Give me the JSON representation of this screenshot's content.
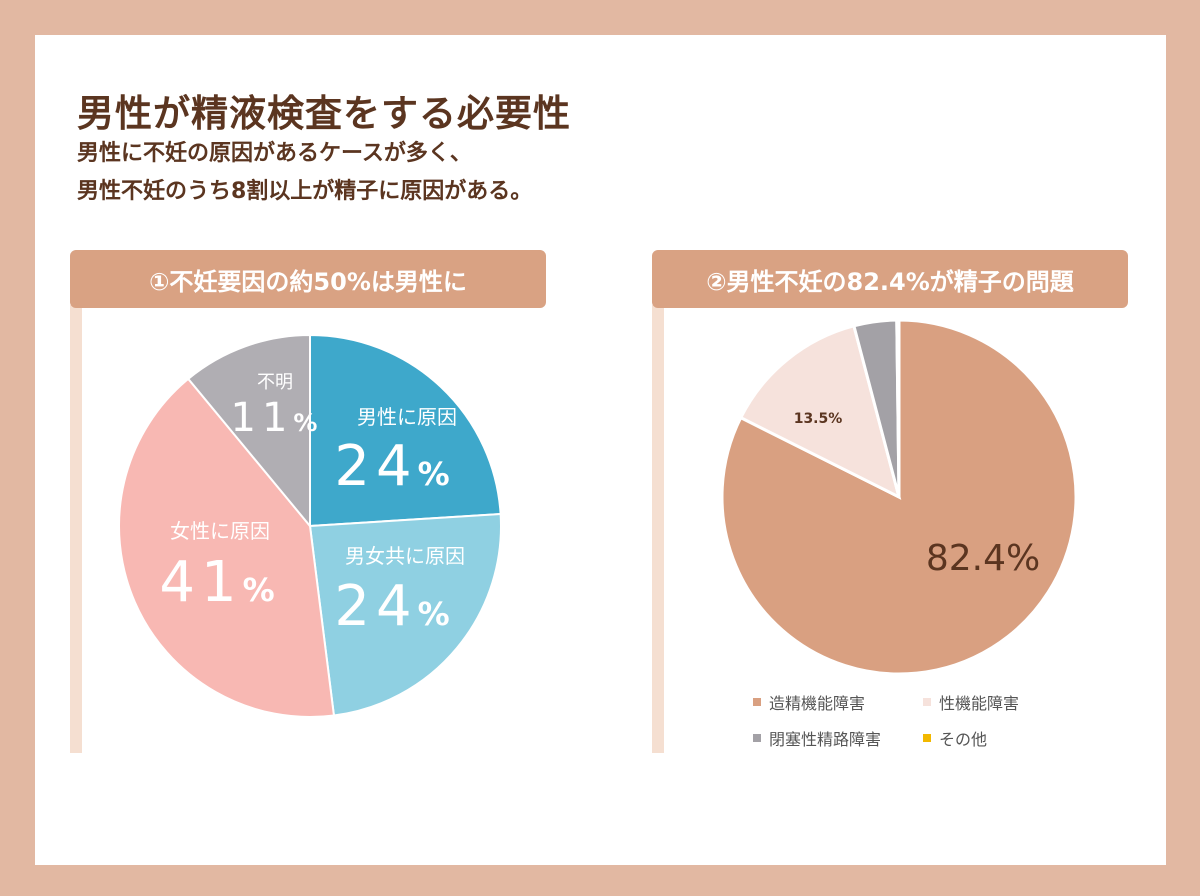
{
  "title": "男性が精液検査をする必要性",
  "subtitle_lines": [
    "男性に不妊の原因があるケースが多く、",
    "男性不妊のうち8割以上が精子に原因がある。"
  ],
  "panel1": {
    "heading": "①不妊要因の約50%は男性に"
  },
  "panel2": {
    "heading": "②男性不妊の82.4%が精子の問題"
  },
  "colors": {
    "male": "#3ea8cb",
    "both": "#8fd0e2",
    "female": "#f8b8b3",
    "unknown": "#b0aeb3",
    "sperm": "#d9a081",
    "sexual": "#f6e2dc",
    "obstruct": "#a3a1a6",
    "other": "#f2b800",
    "text_dark": "#5b3520"
  },
  "chart_data": [
    {
      "type": "pie",
      "title": "①不妊要因の約50%は男性に",
      "start": "top, clockwise",
      "slices": [
        {
          "label": "男性に原因",
          "value": 24,
          "display": "24",
          "unit": "%",
          "color_key": "male"
        },
        {
          "label": "男女共に原因",
          "value": 24,
          "display": "24",
          "unit": "%",
          "color_key": "both"
        },
        {
          "label": "女性に原因",
          "value": 41,
          "display": "41",
          "unit": "%",
          "color_key": "female"
        },
        {
          "label": "不明",
          "value": 11,
          "display": "11",
          "unit": "%",
          "color_key": "unknown"
        }
      ]
    },
    {
      "type": "pie",
      "title": "②男性不妊の82.4%が精子の問題",
      "start": "top, clockwise",
      "slices": [
        {
          "label": "造精機能障害",
          "value": 82.4,
          "display": "82.4%",
          "color_key": "sperm"
        },
        {
          "label": "性機能障害",
          "value": 13.5,
          "display": "13.5%",
          "color_key": "sexual"
        },
        {
          "label": "閉塞性精路障害",
          "value": 3.9,
          "display": "",
          "color_key": "obstruct"
        },
        {
          "label": "その他",
          "value": 0.2,
          "display": "",
          "color_key": "other"
        }
      ],
      "legend_position": "bottom"
    }
  ]
}
